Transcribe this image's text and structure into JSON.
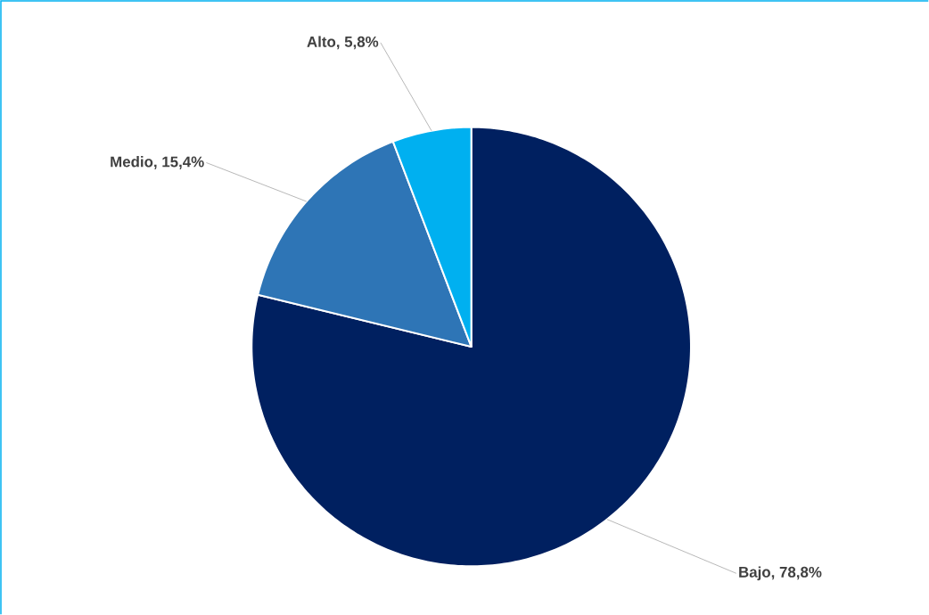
{
  "chart_data": {
    "type": "pie",
    "categories": [
      "Bajo",
      "Medio",
      "Alto"
    ],
    "values": [
      78.8,
      15.4,
      5.8
    ],
    "colors": [
      "#002060",
      "#2e75b6",
      "#00b0f0"
    ],
    "value_labels": [
      ", 78,8%",
      ", 15,4%",
      ", 5,8%"
    ]
  }
}
